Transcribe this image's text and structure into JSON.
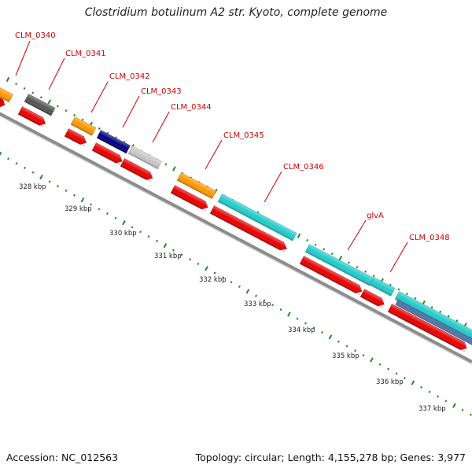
{
  "title": "Clostridium botulinum A2 str. Kyoto, complete genome",
  "footer": {
    "accession": "Accession: NC_012563",
    "summary": "Topology: circular; Length: 4,155,278 bp; Genes: 3,977"
  },
  "colors": {
    "backbone": "#8c8c8c",
    "tick": "#1f8a1f",
    "label_red": "#cc0000",
    "cds": "#e80000",
    "orange": "#ff9900",
    "dark_gray": "#555555",
    "navy": "#000080",
    "light_gray": "#c8c8c8",
    "cyan": "#22cccc",
    "steel": "#5577aa"
  },
  "scale": {
    "unit": "kbp",
    "labels": [
      "328 kbp",
      "329 kbp",
      "330 kbp",
      "331 kbp",
      "332 kbp",
      "333 kbp",
      "334 kbp",
      "335 kbp",
      "336 kbp",
      "337 kbp"
    ]
  },
  "genes": [
    {
      "name": "CLM_0340"
    },
    {
      "name": "CLM_0341"
    },
    {
      "name": "CLM_0342"
    },
    {
      "name": "CLM_0343"
    },
    {
      "name": "CLM_0344"
    },
    {
      "name": "CLM_0345"
    },
    {
      "name": "CLM_0346"
    },
    {
      "name": "glvA"
    },
    {
      "name": "CLM_0348"
    }
  ]
}
